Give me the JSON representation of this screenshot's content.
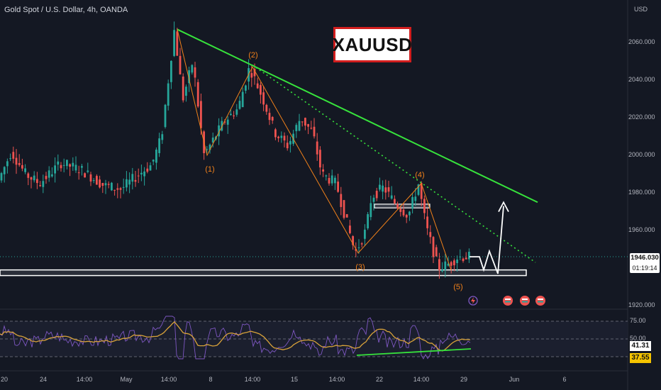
{
  "header": {
    "symbol_title": "Gold Spot / U.S. Dollar, 4h, OANDA"
  },
  "banner": {
    "text": "XAUUSD"
  },
  "price_axis": {
    "unit": "USD",
    "ticks": [
      "2060.000",
      "2040.000",
      "2020.000",
      "2000.000",
      "1980.000",
      "1960.000",
      "1920.000"
    ],
    "current_price": "1946.030",
    "countdown": "01:19:14"
  },
  "rsi_axis": {
    "ticks": [
      "75.00",
      "50.00"
    ],
    "rsi_value": "41.31",
    "rsi_ma_value": "37.55"
  },
  "time_axis": {
    "ticks": [
      "20",
      "24",
      "14:00",
      "May",
      "14:00",
      "8",
      "14:00",
      "15",
      "14:00",
      "22",
      "14:00",
      "29",
      "Jun",
      "6"
    ]
  },
  "wave_labels": [
    "(1)",
    "(2)",
    "(3)",
    "(4)",
    "(5)"
  ],
  "colors": {
    "background": "#141823",
    "up_candle": "#26a69a",
    "down_candle": "#ef5350",
    "trendline": "#37e33c",
    "dotted_trendline": "#37e33c",
    "wave_line": "#f0801a",
    "rsi_line": "#7e57c2",
    "rsi_ma": "#d8a23a",
    "projection": "#ffffff"
  },
  "icons": [
    "flash-icon",
    "flag-icon",
    "flag-icon",
    "flag-icon"
  ],
  "chart_data": {
    "type": "line",
    "title": "Gold Spot / U.S. Dollar, 4h, OANDA",
    "series": [
      {
        "name": "XAUUSD",
        "x": [
          "Apr 20",
          "Apr 24",
          "Apr 26",
          "May 1",
          "May 4",
          "May 5",
          "May 8",
          "May 11",
          "May 15",
          "May 17",
          "May 22",
          "May 24",
          "May 26",
          "May 29"
        ],
        "values": [
          1990,
          1985,
          1994,
          1980,
          2067,
          2000,
          2047,
          2012,
          1998,
          1948,
          1983,
          1942,
          1960,
          1946
        ]
      }
    ],
    "elliott_wave_points": [
      {
        "label": "(1)",
        "price": 2000
      },
      {
        "label": "(2)",
        "price": 2047
      },
      {
        "label": "(3)",
        "price": 1948
      },
      {
        "label": "(4)",
        "price": 1985
      },
      {
        "label": "(5)",
        "price": 1939
      }
    ],
    "trendline": {
      "from_price": 2067,
      "to_price": 1975
    },
    "support_zone": [
      1936,
      1939
    ],
    "resistance_box": [
      1972,
      1974
    ],
    "current_price": 1946.03,
    "ylim": [
      1918,
      2074
    ],
    "ylabel": "USD",
    "rsi": {
      "value": 41.31,
      "ma": 37.55,
      "levels": [
        75,
        50,
        25
      ]
    }
  }
}
